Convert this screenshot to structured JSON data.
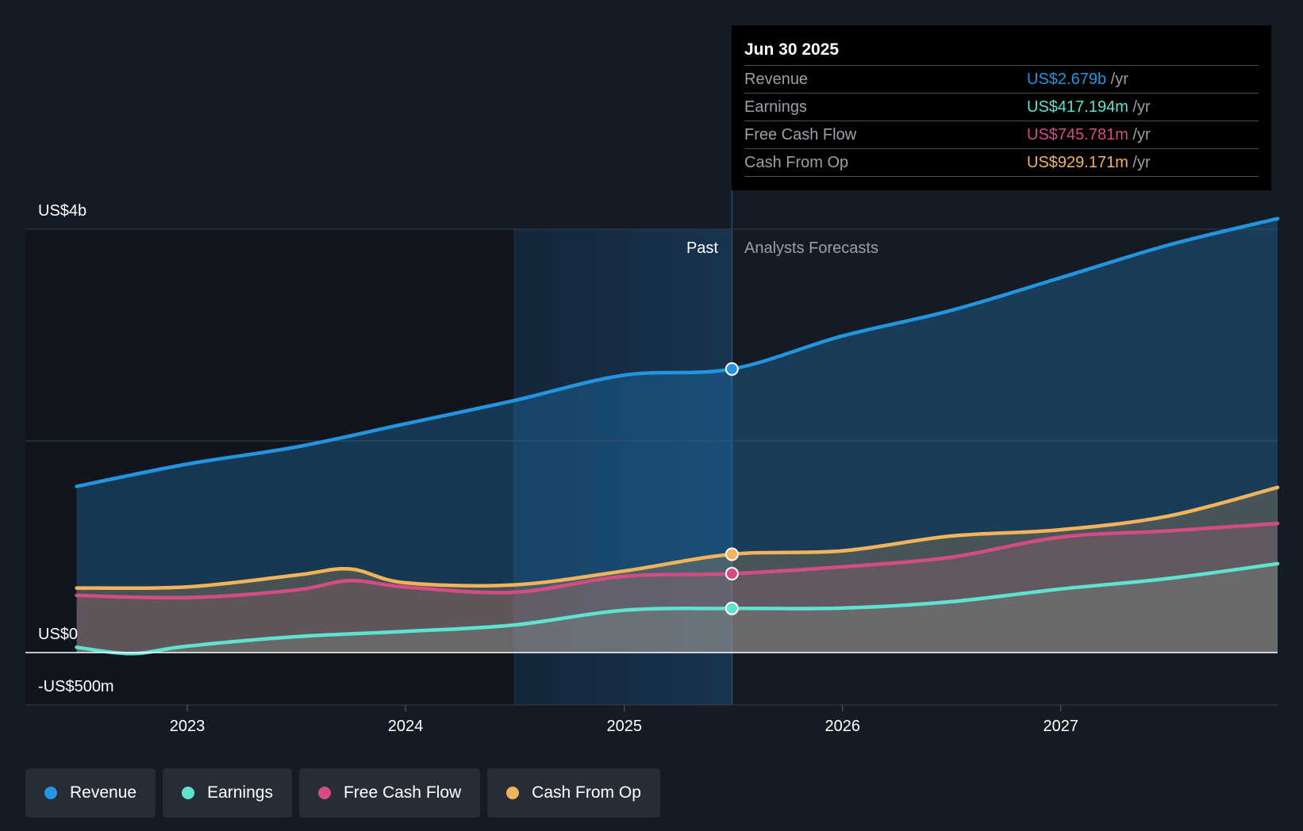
{
  "chart_data": {
    "type": "area",
    "x_axis": {
      "ticks": [
        "2023",
        "2024",
        "2025",
        "2026",
        "2027"
      ]
    },
    "y_axis": {
      "labels": {
        "top": "US$4b",
        "zero": "US$0",
        "bottom": "-US$500m"
      },
      "ylim": [
        -500,
        4000
      ],
      "unit": "US$m"
    },
    "grid": true,
    "divider": {
      "x": "2025-06-30",
      "past_label": "Past",
      "forecast_label": "Analysts Forecasts"
    },
    "series": [
      {
        "name": "Revenue",
        "color": "#2394df",
        "points": [
          [
            "2022-06-30",
            1570
          ],
          [
            "2022-12-31",
            1780
          ],
          [
            "2023-06-30",
            1940
          ],
          [
            "2023-12-31",
            2160
          ],
          [
            "2024-06-30",
            2380
          ],
          [
            "2024-12-31",
            2620
          ],
          [
            "2025-06-30",
            2679
          ],
          [
            "2025-12-31",
            2990
          ],
          [
            "2026-06-30",
            3230
          ],
          [
            "2026-12-31",
            3540
          ],
          [
            "2027-06-30",
            3850
          ],
          [
            "2027-12-31",
            4100
          ]
        ]
      },
      {
        "name": "Earnings",
        "color": "#5fe3d1",
        "points": [
          [
            "2022-06-30",
            50
          ],
          [
            "2022-09-30",
            -10
          ],
          [
            "2022-12-31",
            60
          ],
          [
            "2023-06-30",
            150
          ],
          [
            "2023-12-31",
            200
          ],
          [
            "2024-06-30",
            260
          ],
          [
            "2024-12-31",
            400
          ],
          [
            "2025-06-30",
            417.194
          ],
          [
            "2025-12-31",
            420
          ],
          [
            "2026-06-30",
            480
          ],
          [
            "2026-12-31",
            600
          ],
          [
            "2027-06-30",
            700
          ],
          [
            "2027-12-31",
            840
          ]
        ]
      },
      {
        "name": "Free Cash Flow",
        "color": "#d44c84",
        "points": [
          [
            "2022-06-30",
            540
          ],
          [
            "2022-12-31",
            520
          ],
          [
            "2023-06-30",
            590
          ],
          [
            "2023-09-30",
            680
          ],
          [
            "2023-12-31",
            620
          ],
          [
            "2024-06-30",
            570
          ],
          [
            "2024-12-31",
            720
          ],
          [
            "2025-06-30",
            745.781
          ],
          [
            "2025-12-31",
            810
          ],
          [
            "2026-06-30",
            900
          ],
          [
            "2026-12-31",
            1090
          ],
          [
            "2027-06-30",
            1150
          ],
          [
            "2027-12-31",
            1220
          ]
        ]
      },
      {
        "name": "Cash From Op",
        "color": "#f2b35b",
        "points": [
          [
            "2022-06-30",
            610
          ],
          [
            "2022-12-31",
            620
          ],
          [
            "2023-06-30",
            730
          ],
          [
            "2023-09-30",
            790
          ],
          [
            "2023-12-31",
            660
          ],
          [
            "2024-06-30",
            640
          ],
          [
            "2024-12-31",
            770
          ],
          [
            "2025-06-30",
            929.171
          ],
          [
            "2025-12-31",
            960
          ],
          [
            "2026-06-30",
            1100
          ],
          [
            "2026-12-31",
            1160
          ],
          [
            "2027-06-30",
            1290
          ],
          [
            "2027-12-31",
            1560
          ]
        ]
      }
    ]
  },
  "tooltip": {
    "date": "Jun 30 2025",
    "rows": [
      {
        "label": "Revenue",
        "value": "US$2.679b",
        "unit": "/yr",
        "color": "#2394df"
      },
      {
        "label": "Earnings",
        "value": "US$417.194m",
        "unit": "/yr",
        "color": "#5fe3d1"
      },
      {
        "label": "Free Cash Flow",
        "value": "US$745.781m",
        "unit": "/yr",
        "color": "#d44c84"
      },
      {
        "label": "Cash From Op",
        "value": "US$929.171m",
        "unit": "/yr",
        "color": "#f2b35b"
      }
    ]
  },
  "legend": [
    {
      "label": "Revenue",
      "color": "#2394df"
    },
    {
      "label": "Earnings",
      "color": "#5fe3d1"
    },
    {
      "label": "Free Cash Flow",
      "color": "#d44c84"
    },
    {
      "label": "Cash From Op",
      "color": "#f2b35b"
    }
  ]
}
